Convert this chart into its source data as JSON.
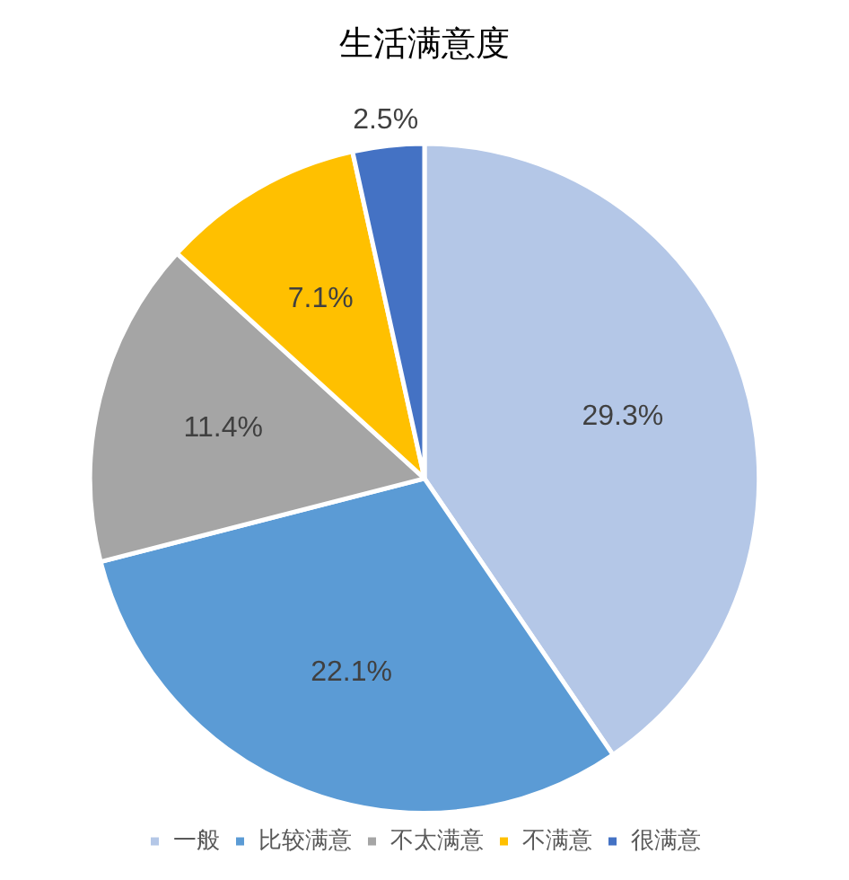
{
  "chart_data": {
    "type": "pie",
    "title": "生活满意度",
    "categories": [
      "一般",
      "比较满意",
      "不太满意",
      "不满意",
      "很满意"
    ],
    "values": [
      29.3,
      22.1,
      11.4,
      7.1,
      2.5
    ],
    "value_labels": [
      "29.3%",
      "22.1%",
      "11.4%",
      "7.1%",
      "2.5%"
    ],
    "colors": [
      "#b4c7e7",
      "#5b9bd5",
      "#a5a5a5",
      "#ffc000",
      "#4472c4"
    ],
    "legend": "bottom"
  }
}
